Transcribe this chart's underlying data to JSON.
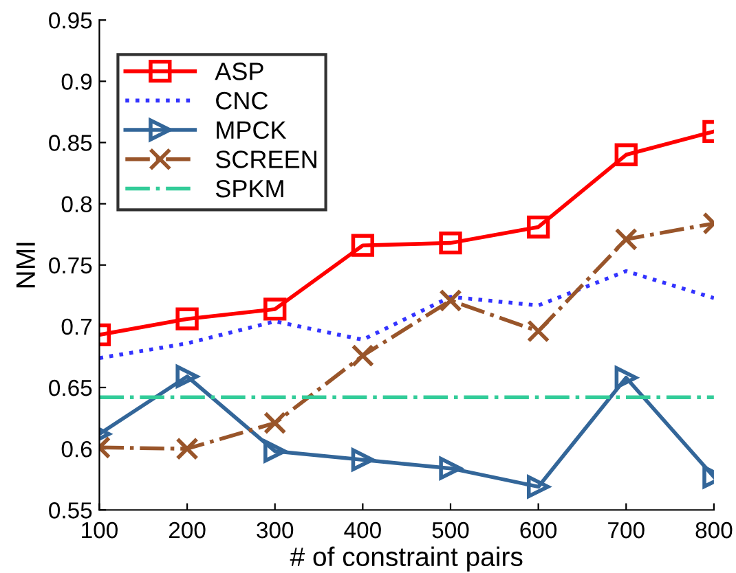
{
  "chart_data": {
    "type": "line",
    "xlabel": "# of constraint pairs",
    "ylabel": "NMI",
    "x": [
      100,
      200,
      300,
      400,
      500,
      600,
      700,
      800
    ],
    "xlim": [
      100,
      800
    ],
    "xticks": [
      100,
      200,
      300,
      400,
      500,
      600,
      700,
      800
    ],
    "ylim": [
      0.55,
      0.95
    ],
    "yticks": [
      0.55,
      0.6,
      0.65,
      0.7,
      0.75,
      0.8,
      0.85,
      0.9,
      0.95
    ],
    "grid": false,
    "legend": "top left",
    "series": [
      {
        "name": "ASP",
        "color": "#ff0000",
        "marker": "square",
        "line_style": "solid",
        "values": [
          0.693,
          0.706,
          0.714,
          0.766,
          0.768,
          0.781,
          0.84,
          0.859
        ]
      },
      {
        "name": "CNC",
        "color": "#3333ff",
        "marker": "none",
        "line_style": "dotted",
        "values": [
          0.674,
          0.686,
          0.704,
          0.689,
          0.724,
          0.717,
          0.745,
          0.723
        ]
      },
      {
        "name": "MPCK",
        "color": "#336699",
        "marker": "triangle",
        "line_style": "solid",
        "values": [
          0.612,
          0.659,
          0.598,
          0.591,
          0.584,
          0.569,
          0.658,
          0.577
        ]
      },
      {
        "name": "SCREEN",
        "color": "#99552a",
        "marker": "cross",
        "line_style": "dashdot",
        "values": [
          0.601,
          0.6,
          0.621,
          0.676,
          0.721,
          0.696,
          0.771,
          0.784
        ]
      },
      {
        "name": "SPKM",
        "color": "#33cc99",
        "marker": "none",
        "line_style": "dashdot",
        "values": [
          0.642,
          0.642,
          0.642,
          0.642,
          0.642,
          0.642,
          0.642,
          0.642
        ]
      }
    ]
  }
}
